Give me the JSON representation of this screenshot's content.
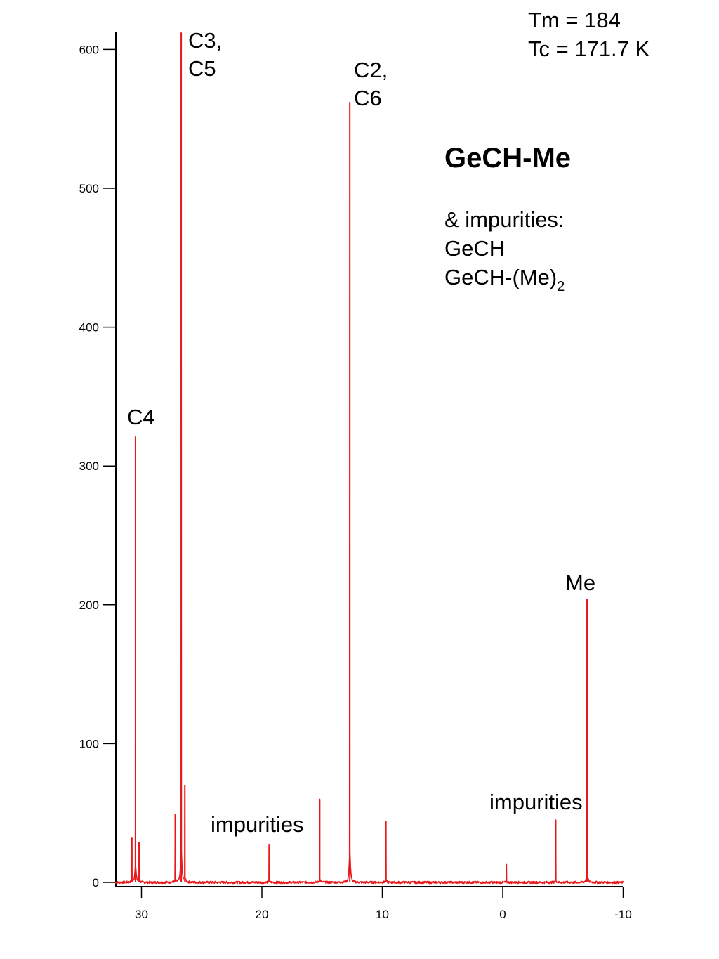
{
  "chart_data": {
    "type": "line",
    "title": "",
    "xlabel": "",
    "ylabel": "",
    "xlim": [
      32.2,
      -10
    ],
    "ylim": [
      -3,
      612
    ],
    "x_reversed": true,
    "grid": false,
    "line_color": "#e8191b",
    "x_ticks": [
      30,
      20,
      10,
      0,
      -10
    ],
    "x_tick_labels": [
      "30",
      "20",
      "10",
      "0",
      "-10"
    ],
    "y_ticks": [
      0,
      100,
      200,
      300,
      400,
      500,
      600
    ],
    "y_tick_labels": [
      "0",
      "100",
      "200",
      "300",
      "400",
      "500",
      "600"
    ],
    "peaks": [
      {
        "x": 30.8,
        "y": 32
      },
      {
        "x": 30.5,
        "y": 321
      },
      {
        "x": 30.2,
        "y": 29
      },
      {
        "x": 27.2,
        "y": 49
      },
      {
        "x": 26.7,
        "y": 612
      },
      {
        "x": 26.4,
        "y": 70
      },
      {
        "x": 19.4,
        "y": 27
      },
      {
        "x": 15.2,
        "y": 60
      },
      {
        "x": 12.7,
        "y": 562
      },
      {
        "x": 9.7,
        "y": 44
      },
      {
        "x": -0.3,
        "y": 13
      },
      {
        "x": -4.4,
        "y": 45
      },
      {
        "x": -7.0,
        "y": 204
      }
    ],
    "annotations": [
      {
        "lines": [
          "Tm = 184",
          "Tc = 171.7 K"
        ]
      },
      {
        "lines": [
          "C3,",
          "C5"
        ]
      },
      {
        "lines": [
          "C2,",
          "C6"
        ]
      },
      {
        "lines": [
          "C4"
        ]
      },
      {
        "lines": [
          "Me"
        ]
      },
      {
        "lines": [
          "impurities"
        ]
      },
      {
        "lines": [
          "impurities"
        ]
      }
    ],
    "compound": {
      "title": "GeCH-Me",
      "impurities_label": "& impurities:",
      "impurity_1": "GeCH",
      "impurity_2_main": "GeCH-(Me)",
      "impurity_2_sub": "2"
    }
  }
}
